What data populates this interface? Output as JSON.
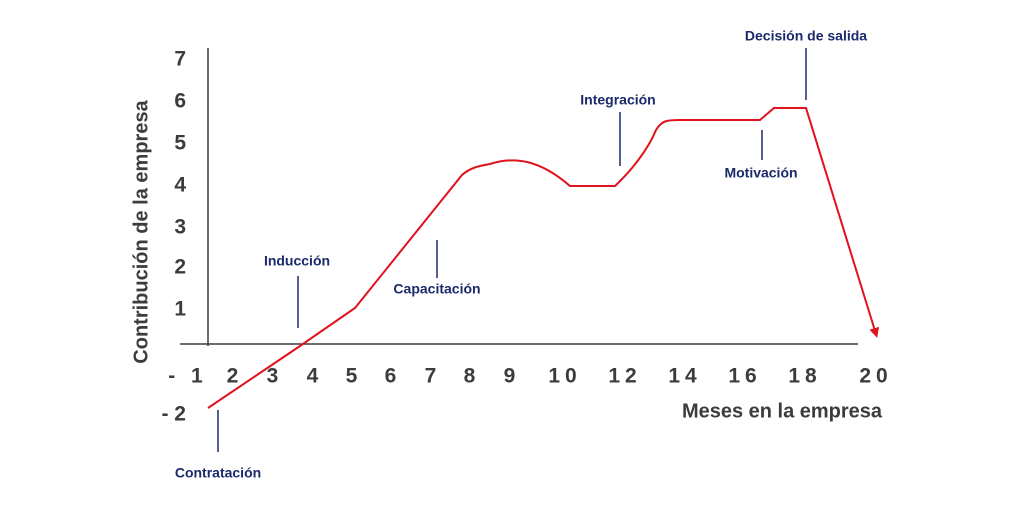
{
  "axis_titles": {
    "y": "Contribución de la empresa",
    "x": "Meses en la empresa"
  },
  "y_tick_labels": [
    "7",
    "6",
    "5",
    "4",
    "3",
    "2",
    "1",
    "- 2"
  ],
  "x_tick_labels": [
    "- 1",
    "2",
    "3",
    "4",
    "5",
    "6",
    "7",
    "8",
    "9",
    "10",
    "12",
    "14",
    "16",
    "18",
    "20"
  ],
  "annotations": [
    "Contratación",
    "Inducción",
    "Capacitación",
    "Integración",
    "Motivación",
    "Decisión de salida"
  ]
}
